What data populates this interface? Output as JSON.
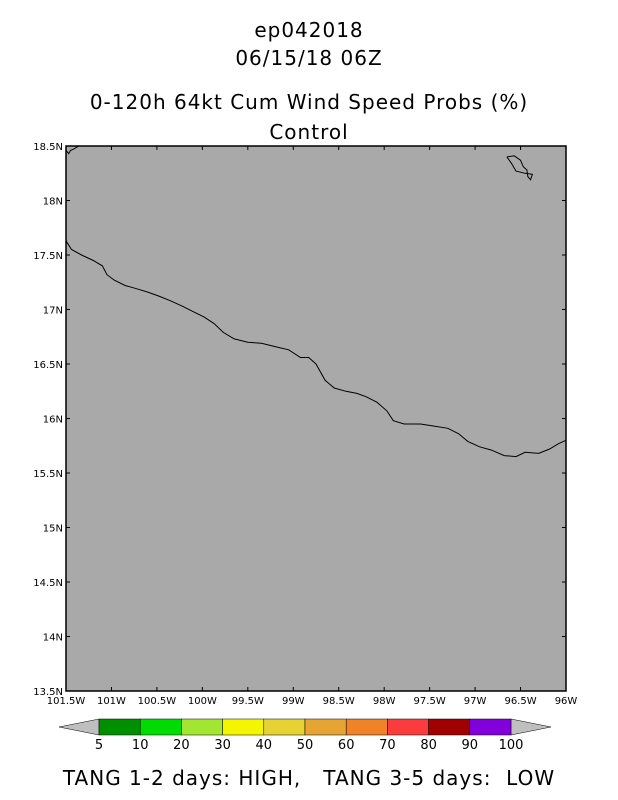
{
  "header": {
    "storm_id": "ep042018",
    "datetime": "06/15/18 06Z",
    "product": "0-120h 64kt Cum Wind Speed Probs (%)",
    "run": "Control"
  },
  "map": {
    "background_color": "#a9a9a9",
    "lat_ticks": [
      "18.5N",
      "18N",
      "17.5N",
      "17N",
      "16.5N",
      "16N",
      "15.5N",
      "15N",
      "14.5N",
      "14N",
      "13.5N"
    ],
    "lon_ticks": [
      "101.5W",
      "101W",
      "100.5W",
      "100W",
      "99.5W",
      "99W",
      "98.5W",
      "98W",
      "97.5W",
      "97W",
      "96.5W",
      "96W"
    ],
    "lat_range": [
      13.5,
      18.5
    ],
    "lon_range": [
      -101.5,
      -96.0
    ],
    "coastline": [
      [
        -101.5,
        17.63
      ],
      [
        -101.44,
        17.55
      ],
      [
        -101.33,
        17.5
      ],
      [
        -101.2,
        17.45
      ],
      [
        -101.1,
        17.4
      ],
      [
        -101.05,
        17.32
      ],
      [
        -100.97,
        17.27
      ],
      [
        -100.85,
        17.22
      ],
      [
        -100.72,
        17.19
      ],
      [
        -100.6,
        17.16
      ],
      [
        -100.47,
        17.12
      ],
      [
        -100.35,
        17.08
      ],
      [
        -100.22,
        17.03
      ],
      [
        -100.1,
        16.98
      ],
      [
        -99.98,
        16.93
      ],
      [
        -99.87,
        16.87
      ],
      [
        -99.77,
        16.79
      ],
      [
        -99.65,
        16.73
      ],
      [
        -99.5,
        16.7
      ],
      [
        -99.35,
        16.69
      ],
      [
        -99.2,
        16.66
      ],
      [
        -99.05,
        16.63
      ],
      [
        -98.92,
        16.56
      ],
      [
        -98.83,
        16.56
      ],
      [
        -98.75,
        16.5
      ],
      [
        -98.65,
        16.35
      ],
      [
        -98.55,
        16.28
      ],
      [
        -98.42,
        16.25
      ],
      [
        -98.3,
        16.23
      ],
      [
        -98.2,
        16.2
      ],
      [
        -98.08,
        16.15
      ],
      [
        -97.97,
        16.07
      ],
      [
        -97.9,
        15.98
      ],
      [
        -97.78,
        15.95
      ],
      [
        -97.6,
        15.95
      ],
      [
        -97.45,
        15.93
      ],
      [
        -97.3,
        15.91
      ],
      [
        -97.18,
        15.86
      ],
      [
        -97.08,
        15.79
      ],
      [
        -96.95,
        15.74
      ],
      [
        -96.82,
        15.71
      ],
      [
        -96.68,
        15.66
      ],
      [
        -96.55,
        15.65
      ],
      [
        -96.45,
        15.69
      ],
      [
        -96.3,
        15.68
      ],
      [
        -96.18,
        15.72
      ],
      [
        -96.08,
        15.77
      ],
      [
        -96.0,
        15.8
      ]
    ],
    "lake_outline": [
      [
        -96.65,
        18.4
      ],
      [
        -96.57,
        18.41
      ],
      [
        -96.5,
        18.37
      ],
      [
        -96.47,
        18.31
      ],
      [
        -96.43,
        18.28
      ],
      [
        -96.42,
        18.22
      ],
      [
        -96.39,
        18.19
      ],
      [
        -96.37,
        18.24
      ],
      [
        -96.45,
        18.25
      ],
      [
        -96.55,
        18.27
      ],
      [
        -96.6,
        18.34
      ],
      [
        -96.65,
        18.4
      ]
    ],
    "corner_coast": [
      [
        -101.5,
        18.46
      ],
      [
        -101.47,
        18.43
      ],
      [
        -101.45,
        18.46
      ],
      [
        -101.42,
        18.47
      ],
      [
        -101.36,
        18.5
      ]
    ]
  },
  "colorbar": {
    "labels": [
      "5",
      "10",
      "20",
      "30",
      "40",
      "50",
      "60",
      "70",
      "80",
      "90",
      "100"
    ],
    "colors": [
      "#008f00",
      "#00dc00",
      "#a2e632",
      "#f5f500",
      "#e6d232",
      "#e6a532",
      "#f08228",
      "#fa3c3c",
      "#a00000",
      "#8200dc"
    ],
    "end_color": "#bfbfbf"
  },
  "footer": {
    "left": "TANG 1-2 days: HIGH,",
    "right": "TANG 3-5 days:  LOW"
  }
}
